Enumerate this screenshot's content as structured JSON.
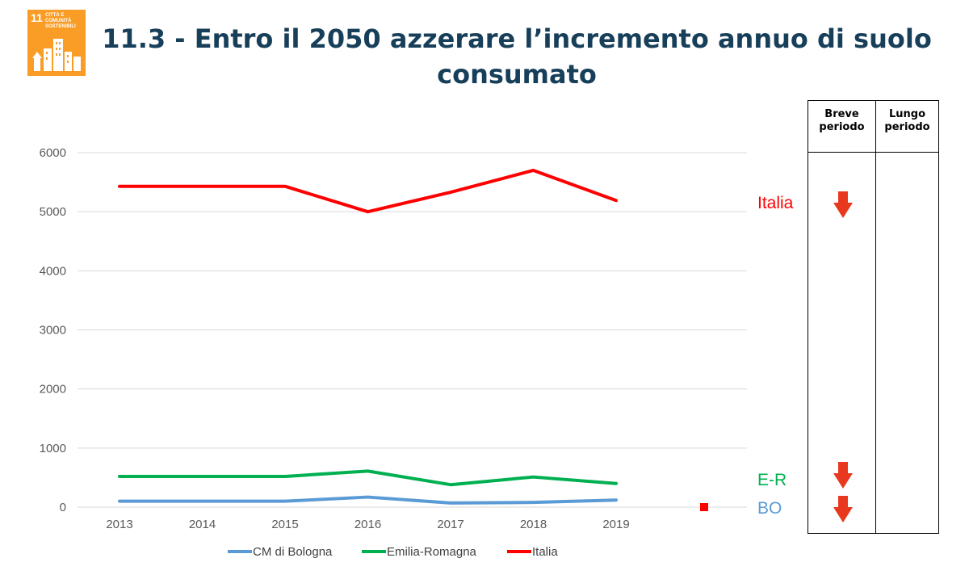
{
  "header": {
    "title": "11.3 - Entro il 2050 azzerare l’incremento annuo di suolo consumato",
    "sdg_number": "11",
    "sdg_text": "CITTÀ E COMUNITÀ SOSTENIBILI"
  },
  "colors": {
    "cm_bologna": "#5b9bd5",
    "emilia_romagna": "#00b050",
    "italia": "#ff0000",
    "arrow": "#e8391f",
    "sdg": "#f99d26",
    "title": "#173f5a"
  },
  "chart_data": {
    "type": "line",
    "x": [
      "2013",
      "2014",
      "2015",
      "2016",
      "2017",
      "2018",
      "2019"
    ],
    "ylim": [
      0,
      6000
    ],
    "yticks": [
      "0",
      "1000",
      "2000",
      "3000",
      "4000",
      "5000",
      "6000"
    ],
    "grid": true,
    "legend_position": "bottom",
    "series": [
      {
        "name": "CM di Bologna",
        "values": [
          100,
          100,
          100,
          170,
          70,
          80,
          120
        ]
      },
      {
        "name": "Emilia-Romagna",
        "values": [
          520,
          520,
          520,
          610,
          380,
          510,
          400
        ]
      },
      {
        "name": "Italia",
        "values": [
          5430,
          5430,
          5430,
          5000,
          5330,
          5700,
          5190
        ]
      }
    ],
    "side_labels": [
      "Italia",
      "E-R",
      "BO"
    ]
  },
  "trend_table": {
    "col_breve": "Breve periodo",
    "col_lungo": "Lungo periodo",
    "rows": [
      {
        "label": "Italia",
        "breve": "down",
        "lungo": ""
      },
      {
        "label": "E-R",
        "breve": "down",
        "lungo": ""
      },
      {
        "label": "BO",
        "breve": "down",
        "lungo": ""
      }
    ]
  }
}
